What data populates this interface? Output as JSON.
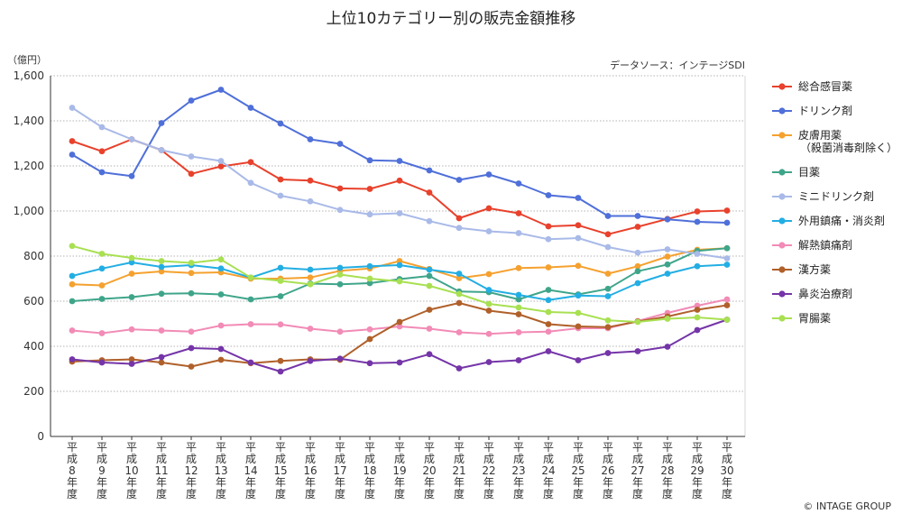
{
  "chart_data": {
    "type": "line",
    "title": "上位10カテゴリー別の販売金額推移",
    "ylabel": "（億円）",
    "source": "データソース：インテージSDI",
    "copyright": "© INTAGE GROUP",
    "ylim": [
      0,
      1600
    ],
    "yticks": [
      0,
      200,
      400,
      600,
      800,
      1000,
      1200,
      1400,
      1600
    ],
    "ytick_labels": [
      "0",
      "200",
      "400",
      "600",
      "800",
      "1,000",
      "1,200",
      "1,400",
      "1,600"
    ],
    "grid": true,
    "legend_position": "right",
    "categories": [
      "平成8年度",
      "平成9年度",
      "平成10年度",
      "平成11年度",
      "平成12年度",
      "平成13年度",
      "平成14年度",
      "平成15年度",
      "平成16年度",
      "平成17年度",
      "平成18年度",
      "平成19年度",
      "平成20年度",
      "平成21年度",
      "平成22年度",
      "平成23年度",
      "平成24年度",
      "平成25年度",
      "平成26年度",
      "平成27年度",
      "平成28年度",
      "平成29年度",
      "平成30年度"
    ],
    "x_labels": [
      [
        "平",
        "成",
        "8",
        "年",
        "度"
      ],
      [
        "平",
        "成",
        "9",
        "年",
        "度"
      ],
      [
        "平",
        "成",
        "10",
        "年",
        "度"
      ],
      [
        "平",
        "成",
        "11",
        "年",
        "度"
      ],
      [
        "平",
        "成",
        "12",
        "年",
        "度"
      ],
      [
        "平",
        "成",
        "13",
        "年",
        "度"
      ],
      [
        "平",
        "成",
        "14",
        "年",
        "度"
      ],
      [
        "平",
        "成",
        "15",
        "年",
        "度"
      ],
      [
        "平",
        "成",
        "16",
        "年",
        "度"
      ],
      [
        "平",
        "成",
        "17",
        "年",
        "度"
      ],
      [
        "平",
        "成",
        "18",
        "年",
        "度"
      ],
      [
        "平",
        "成",
        "19",
        "年",
        "度"
      ],
      [
        "平",
        "成",
        "20",
        "年",
        "度"
      ],
      [
        "平",
        "成",
        "21",
        "年",
        "度"
      ],
      [
        "平",
        "成",
        "22",
        "年",
        "度"
      ],
      [
        "平",
        "成",
        "23",
        "年",
        "度"
      ],
      [
        "平",
        "成",
        "24",
        "年",
        "度"
      ],
      [
        "平",
        "成",
        "25",
        "年",
        "度"
      ],
      [
        "平",
        "成",
        "26",
        "年",
        "度"
      ],
      [
        "平",
        "成",
        "27",
        "年",
        "度"
      ],
      [
        "平",
        "成",
        "28",
        "年",
        "度"
      ],
      [
        "平",
        "成",
        "29",
        "年",
        "度"
      ],
      [
        "平",
        "成",
        "30",
        "年",
        "度"
      ]
    ],
    "series": [
      {
        "name": "総合感冒薬",
        "color": "#e8412c",
        "values": [
          1310,
          1265,
          1318,
          1270,
          1165,
          1198,
          1217,
          1140,
          1135,
          1100,
          1098,
          1135,
          1082,
          968,
          1012,
          990,
          932,
          937,
          897,
          930,
          965,
          998,
          1002
        ]
      },
      {
        "name": "ドリンク剤",
        "color": "#4f6fd9",
        "values": [
          1250,
          1172,
          1155,
          1390,
          1490,
          1538,
          1458,
          1388,
          1318,
          1298,
          1225,
          1222,
          1180,
          1138,
          1162,
          1122,
          1070,
          1058,
          978,
          978,
          963,
          952,
          948
        ]
      },
      {
        "name": [
          "皮膚用薬",
          "（殺菌消毒剤除く）"
        ],
        "color": "#f5a12f",
        "values": [
          675,
          670,
          722,
          732,
          725,
          728,
          700,
          700,
          705,
          735,
          745,
          778,
          743,
          702,
          720,
          747,
          750,
          757,
          722,
          755,
          798,
          828,
          835
        ]
      },
      {
        "name": "目薬",
        "color": "#3fa58a",
        "values": [
          600,
          610,
          618,
          633,
          635,
          630,
          608,
          622,
          678,
          675,
          680,
          698,
          712,
          643,
          640,
          608,
          650,
          630,
          655,
          733,
          763,
          823,
          835
        ]
      },
      {
        "name": "ミニドリンク剤",
        "color": "#a9bae8",
        "values": [
          1458,
          1372,
          1318,
          1270,
          1242,
          1222,
          1125,
          1068,
          1043,
          1005,
          985,
          990,
          955,
          925,
          910,
          902,
          875,
          880,
          840,
          815,
          830,
          810,
          790
        ]
      },
      {
        "name": "外用鎮痛・消炎剤",
        "color": "#23aee3",
        "values": [
          712,
          745,
          772,
          752,
          760,
          745,
          705,
          748,
          740,
          748,
          755,
          760,
          740,
          722,
          650,
          628,
          605,
          625,
          622,
          680,
          722,
          755,
          762
        ]
      },
      {
        "name": "解熱鎮痛剤",
        "color": "#f28bb6",
        "values": [
          470,
          458,
          475,
          470,
          465,
          492,
          498,
          497,
          478,
          465,
          475,
          488,
          478,
          462,
          455,
          462,
          465,
          480,
          480,
          512,
          548,
          580,
          608
        ]
      },
      {
        "name": "漢方薬",
        "color": "#b0602a",
        "values": [
          332,
          338,
          342,
          328,
          310,
          340,
          325,
          335,
          342,
          340,
          432,
          508,
          562,
          592,
          558,
          542,
          498,
          488,
          485,
          510,
          532,
          562,
          582
        ]
      },
      {
        "name": "鼻炎治療剤",
        "color": "#7535a8",
        "values": [
          342,
          328,
          322,
          352,
          392,
          388,
          328,
          288,
          335,
          345,
          325,
          328,
          365,
          302,
          330,
          338,
          378,
          338,
          370,
          378,
          398,
          472,
          518
        ]
      },
      {
        "name": "胃腸薬",
        "color": "#a8e052",
        "values": [
          845,
          810,
          792,
          778,
          770,
          785,
          705,
          690,
          675,
          718,
          700,
          688,
          668,
          632,
          588,
          572,
          552,
          548,
          515,
          508,
          522,
          528,
          518
        ]
      }
    ]
  }
}
